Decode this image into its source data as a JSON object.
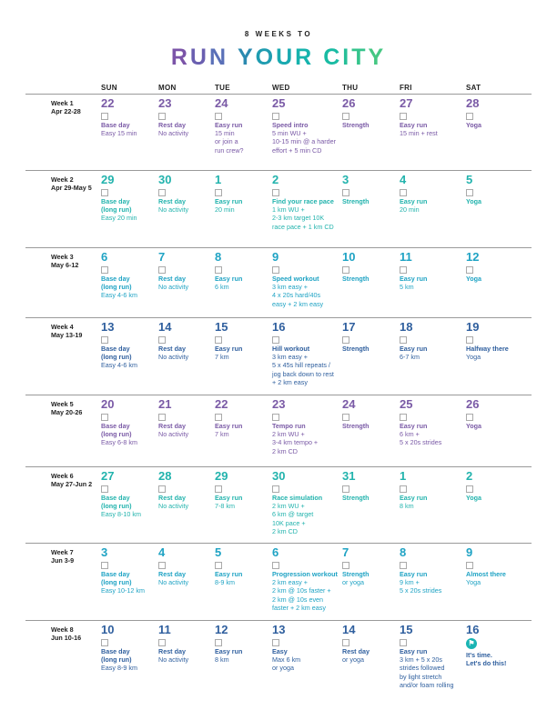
{
  "supertitle": "8 WEEKS TO",
  "title_letters": [
    {
      "ch": "R",
      "color": "#7b54a8"
    },
    {
      "ch": "U",
      "color": "#6a5fb0"
    },
    {
      "ch": "N",
      "color": "#5a70b8"
    },
    {
      "ch": " ",
      "color": "#000000"
    },
    {
      "ch": "Y",
      "color": "#2b8ab0"
    },
    {
      "ch": "O",
      "color": "#1f9cb0"
    },
    {
      "ch": "U",
      "color": "#19a9b0"
    },
    {
      "ch": "R",
      "color": "#16b3ad"
    },
    {
      "ch": " ",
      "color": "#000000"
    },
    {
      "ch": "C",
      "color": "#19bba3"
    },
    {
      "ch": "I",
      "color": "#26bf98"
    },
    {
      "ch": "T",
      "color": "#35c48c"
    },
    {
      "ch": "Y",
      "color": "#45c783"
    }
  ],
  "days": [
    "SUN",
    "MON",
    "TUE",
    "WED",
    "THU",
    "FRI",
    "SAT"
  ],
  "weeks": [
    {
      "label": "Week 1",
      "dates": "Apr 22-28",
      "color": "#7a5aa6",
      "days": [
        {
          "n": "22",
          "act": [
            "Base day"
          ],
          "det": [
            "Easy 15 min"
          ]
        },
        {
          "n": "23",
          "act": [
            "Rest day"
          ],
          "det": [
            "No activity"
          ]
        },
        {
          "n": "24",
          "act": [
            "Easy run"
          ],
          "det": [
            "15 min",
            "or join a",
            "run crew?"
          ]
        },
        {
          "n": "25",
          "act": [
            "Speed intro"
          ],
          "det": [
            "5 min WU +",
            "10-15 min @ a harder",
            "effort + 5 min CD"
          ]
        },
        {
          "n": "26",
          "act": [
            "Strength"
          ],
          "det": []
        },
        {
          "n": "27",
          "act": [
            "Easy run"
          ],
          "det": [
            "15 min + rest"
          ]
        },
        {
          "n": "28",
          "act": [
            "Yoga"
          ],
          "det": []
        }
      ]
    },
    {
      "label": "Week 2",
      "dates": "Apr 29-May 5",
      "color": "#22b3ad",
      "days": [
        {
          "n": "29",
          "act": [
            "Base day",
            "(long run)"
          ],
          "det": [
            "Easy 20 min"
          ]
        },
        {
          "n": "30",
          "act": [
            "Rest day"
          ],
          "det": [
            "No activity"
          ]
        },
        {
          "n": "1",
          "act": [
            "Easy run"
          ],
          "det": [
            "20 min"
          ]
        },
        {
          "n": "2",
          "act": [
            "Find your race pace"
          ],
          "det": [
            "1 km WU +",
            "2-3 km target 10K",
            "race pace + 1 km CD"
          ]
        },
        {
          "n": "3",
          "act": [
            "Strength"
          ],
          "det": []
        },
        {
          "n": "4",
          "act": [
            "Easy run"
          ],
          "det": [
            "20 min"
          ]
        },
        {
          "n": "5",
          "act": [
            "Yoga"
          ],
          "det": []
        }
      ]
    },
    {
      "label": "Week 3",
      "dates": "May 6-12",
      "color": "#1fa3c4",
      "days": [
        {
          "n": "6",
          "act": [
            "Base day",
            "(long run)"
          ],
          "det": [
            "Easy 4-6 km"
          ]
        },
        {
          "n": "7",
          "act": [
            "Rest day"
          ],
          "det": [
            "No activity"
          ]
        },
        {
          "n": "8",
          "act": [
            "Easy run"
          ],
          "det": [
            "6 km"
          ]
        },
        {
          "n": "9",
          "act": [
            "Speed workout"
          ],
          "det": [
            "3 km easy +",
            "4 x 20s hard/40s",
            "easy + 2 km easy"
          ]
        },
        {
          "n": "10",
          "act": [
            "Strength"
          ],
          "det": []
        },
        {
          "n": "11",
          "act": [
            "Easy run"
          ],
          "det": [
            "5 km"
          ]
        },
        {
          "n": "12",
          "act": [
            "Yoga"
          ],
          "det": []
        }
      ]
    },
    {
      "label": "Week 4",
      "dates": "May 13-19",
      "color": "#2f5f9e",
      "days": [
        {
          "n": "13",
          "act": [
            "Base day",
            "(long run)"
          ],
          "det": [
            "Easy 4-6 km"
          ]
        },
        {
          "n": "14",
          "act": [
            "Rest day"
          ],
          "det": [
            "No activity"
          ]
        },
        {
          "n": "15",
          "act": [
            "Easy run"
          ],
          "det": [
            "7 km"
          ]
        },
        {
          "n": "16",
          "act": [
            "Hill workout"
          ],
          "det": [
            "3 km easy +",
            "5 x 45s hill repeats /",
            "jog back down to rest",
            "+ 2 km easy"
          ]
        },
        {
          "n": "17",
          "act": [
            "Strength"
          ],
          "det": []
        },
        {
          "n": "18",
          "act": [
            "Easy run"
          ],
          "det": [
            "6-7 km"
          ]
        },
        {
          "n": "19",
          "act": [
            "Halfway there"
          ],
          "det": [
            "Yoga"
          ]
        }
      ]
    },
    {
      "label": "Week 5",
      "dates": "May 20-26",
      "color": "#7a5aa6",
      "days": [
        {
          "n": "20",
          "act": [
            "Base day",
            "(long run)"
          ],
          "det": [
            "Easy 6-8 km"
          ]
        },
        {
          "n": "21",
          "act": [
            "Rest day"
          ],
          "det": [
            "No activity"
          ]
        },
        {
          "n": "22",
          "act": [
            "Easy run"
          ],
          "det": [
            "7 km"
          ]
        },
        {
          "n": "23",
          "act": [
            "Tempo run"
          ],
          "det": [
            "2 km WU +",
            "3-4 km tempo +",
            "2 km CD"
          ]
        },
        {
          "n": "24",
          "act": [
            "Strength"
          ],
          "det": []
        },
        {
          "n": "25",
          "act": [
            "Easy run"
          ],
          "det": [
            "6 km +",
            "5 x 20s strides"
          ]
        },
        {
          "n": "26",
          "act": [
            "Yoga"
          ],
          "det": []
        }
      ]
    },
    {
      "label": "Week 6",
      "dates": "May 27-Jun 2",
      "color": "#22b3ad",
      "days": [
        {
          "n": "27",
          "act": [
            "Base day",
            "(long run)"
          ],
          "det": [
            "Easy 8-10 km"
          ]
        },
        {
          "n": "28",
          "act": [
            "Rest day"
          ],
          "det": [
            "No activity"
          ]
        },
        {
          "n": "29",
          "act": [
            "Easy run"
          ],
          "det": [
            "7-8 km"
          ]
        },
        {
          "n": "30",
          "act": [
            "Race simulation"
          ],
          "det": [
            "2 km WU +",
            "6 km @ target",
            "10K pace +",
            "2 km CD"
          ]
        },
        {
          "n": "31",
          "act": [
            "Strength"
          ],
          "det": []
        },
        {
          "n": "1",
          "act": [
            "Easy run"
          ],
          "det": [
            "8 km"
          ]
        },
        {
          "n": "2",
          "act": [
            "Yoga"
          ],
          "det": []
        }
      ]
    },
    {
      "label": "Week 7",
      "dates": "Jun 3-9",
      "color": "#1fa3c4",
      "days": [
        {
          "n": "3",
          "act": [
            "Base day",
            "(long run)"
          ],
          "det": [
            "Easy 10-12 km"
          ]
        },
        {
          "n": "4",
          "act": [
            "Rest day"
          ],
          "det": [
            "No activity"
          ]
        },
        {
          "n": "5",
          "act": [
            "Easy run"
          ],
          "det": [
            "8-9 km"
          ]
        },
        {
          "n": "6",
          "act": [
            "Progression workout"
          ],
          "det": [
            "2 km easy +",
            "2 km @ 10s faster +",
            "2 km @ 10s even",
            "faster + 2 km easy"
          ]
        },
        {
          "n": "7",
          "act": [
            "Strength"
          ],
          "det": [
            "or yoga"
          ]
        },
        {
          "n": "8",
          "act": [
            "Easy run"
          ],
          "det": [
            "9 km +",
            "5 x 20s strides"
          ]
        },
        {
          "n": "9",
          "act": [
            "Almost there"
          ],
          "det": [
            "Yoga"
          ]
        }
      ]
    },
    {
      "label": "Week 8",
      "dates": "Jun 10-16",
      "color": "#2f5f9e",
      "days": [
        {
          "n": "10",
          "act": [
            "Base day",
            "(long run)"
          ],
          "det": [
            "Easy 8-9 km"
          ]
        },
        {
          "n": "11",
          "act": [
            "Rest day"
          ],
          "det": [
            "No activity"
          ]
        },
        {
          "n": "12",
          "act": [
            "Easy run"
          ],
          "det": [
            "8 km"
          ]
        },
        {
          "n": "13",
          "act": [
            "Easy"
          ],
          "det": [
            "Max 6 km",
            "or yoga"
          ]
        },
        {
          "n": "14",
          "act": [
            "Rest day"
          ],
          "det": [
            "or yoga"
          ]
        },
        {
          "n": "15",
          "act": [
            "Easy run"
          ],
          "det": [
            "3 km + 5 x 20s",
            "strides followed",
            "by light stretch",
            "and/or foam rolling"
          ]
        },
        {
          "n": "16",
          "act": [
            "It's time.",
            "Let's do this!"
          ],
          "det": [],
          "icon": "finish-badge-icon"
        }
      ]
    }
  ]
}
